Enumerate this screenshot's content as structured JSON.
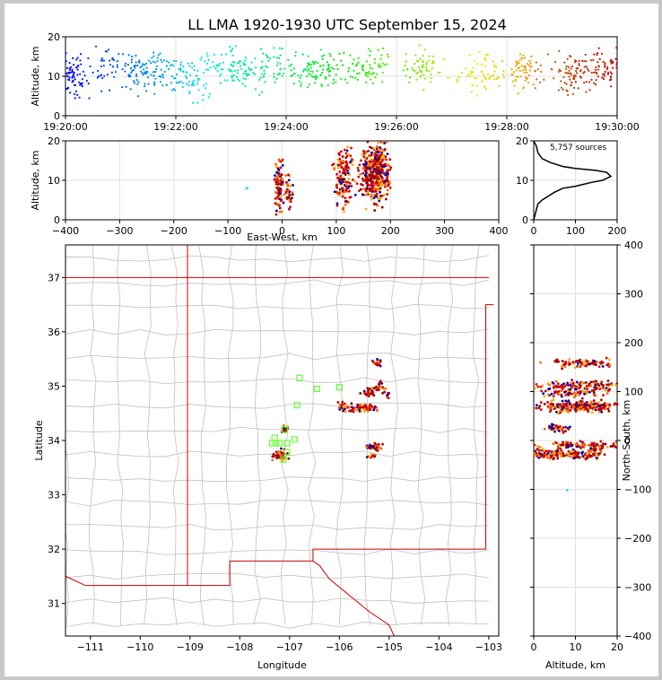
{
  "chart_data": [
    {
      "panel": "altitude-time",
      "type": "scatter",
      "title": "LL LMA 1920-1930 UTC September 15, 2024",
      "ylabel": "Altitude, km",
      "xlabel": "",
      "x_tick_labels": [
        "19:20:00",
        "19:22:00",
        "19:24:00",
        "19:26:00",
        "19:28:00",
        "19:30:00"
      ],
      "y_ticks": [
        0,
        10,
        20
      ],
      "xlim_minutes": [
        0,
        10
      ],
      "ylim": [
        0,
        20
      ],
      "color_scale": "time (blue → red)",
      "grid": true,
      "clusters": [
        {
          "t": 0.1,
          "alt": 10,
          "spread": 3.5,
          "n": 90
        },
        {
          "t": 0.8,
          "alt": 12,
          "spread": 3,
          "n": 40
        },
        {
          "t": 1.35,
          "alt": 11.5,
          "spread": 3,
          "n": 70
        },
        {
          "t": 1.8,
          "alt": 12,
          "spread": 3,
          "n": 40
        },
        {
          "t": 2.3,
          "alt": 9,
          "spread": 3.5,
          "n": 60
        },
        {
          "t": 2.9,
          "alt": 12.5,
          "spread": 3,
          "n": 50
        },
        {
          "t": 3.3,
          "alt": 11,
          "spread": 3,
          "n": 50
        },
        {
          "t": 3.8,
          "alt": 12,
          "spread": 3,
          "n": 40
        },
        {
          "t": 4.4,
          "alt": 11,
          "spread": 3,
          "n": 50
        },
        {
          "t": 4.8,
          "alt": 12,
          "spread": 3,
          "n": 40
        },
        {
          "t": 5.5,
          "alt": 12,
          "spread": 3,
          "n": 60
        },
        {
          "t": 6.5,
          "alt": 12,
          "spread": 3,
          "n": 60
        },
        {
          "t": 7.5,
          "alt": 11,
          "spread": 3,
          "n": 60
        },
        {
          "t": 8.3,
          "alt": 11.5,
          "spread": 3,
          "n": 70
        },
        {
          "t": 9.2,
          "alt": 10.5,
          "spread": 3.5,
          "n": 80
        },
        {
          "t": 9.8,
          "alt": 12,
          "spread": 3,
          "n": 60
        }
      ]
    },
    {
      "panel": "altitude-eastwest",
      "type": "scatter",
      "xlabel": "East-West, km",
      "ylabel": "Altitude, km",
      "xlim": [
        -400,
        400
      ],
      "ylim": [
        0,
        20
      ],
      "x_ticks": [
        -400,
        -300,
        -200,
        -100,
        0,
        100,
        200,
        300,
        400
      ],
      "y_ticks": [
        0,
        10,
        20
      ],
      "grid": true,
      "clusters": [
        {
          "x": -5,
          "alt": 8,
          "spread_x": 4,
          "spread_alt": 3,
          "n": 80
        },
        {
          "x": 12,
          "alt": 7,
          "spread_x": 4,
          "spread_alt": 2,
          "n": 40
        },
        {
          "x": 115,
          "alt": 11,
          "spread_x": 8,
          "spread_alt": 4,
          "n": 140
        },
        {
          "x": 160,
          "alt": 11,
          "spread_x": 8,
          "spread_alt": 4,
          "n": 160
        },
        {
          "x": 178,
          "alt": 13,
          "spread_x": 8,
          "spread_alt": 4,
          "n": 220
        },
        {
          "x": 195,
          "alt": 12,
          "spread_x": 3,
          "spread_alt": 3,
          "n": 30
        }
      ]
    },
    {
      "panel": "altitude-histogram",
      "type": "line",
      "annotation": "5,757 sources",
      "xlim": [
        0,
        200
      ],
      "ylim": [
        0,
        20
      ],
      "x_ticks": [
        0,
        100,
        200
      ],
      "y_ticks": [
        0,
        10,
        20
      ],
      "grid": true,
      "x": [
        0,
        5,
        10,
        20,
        35,
        50,
        70,
        100,
        120,
        140,
        165,
        185,
        175,
        150,
        100,
        70,
        40,
        20,
        10,
        8,
        5,
        2,
        0
      ],
      "y": [
        0,
        2,
        4,
        5,
        6,
        7,
        8,
        8.5,
        9,
        9.5,
        10,
        11,
        12,
        12.5,
        13,
        13.5,
        14.5,
        15.5,
        17,
        18,
        19,
        19.5,
        20
      ]
    },
    {
      "panel": "plan-view",
      "type": "scatter",
      "xlabel": "Longitude",
      "ylabel": "Latitude",
      "xlim": [
        -111.5,
        -102.8
      ],
      "ylim": [
        30.4,
        37.6
      ],
      "x_tick_labels": [
        "−111",
        "−110",
        "−109",
        "−108",
        "−107",
        "−106",
        "−105",
        "−104",
        "−103"
      ],
      "x_ticks": [
        -111,
        -110,
        -109,
        -108,
        -107,
        -106,
        -105,
        -104,
        -103
      ],
      "y_ticks": [
        31,
        32,
        33,
        34,
        35,
        36,
        37
      ],
      "station_color": "#66ff33",
      "boundary_color": "#cc0000",
      "county_color": "#c0c0c0",
      "stations": [
        [
          -107.1,
          34.2
        ],
        [
          -107.3,
          34.05
        ],
        [
          -107.35,
          33.95
        ],
        [
          -107.2,
          33.95
        ],
        [
          -107.05,
          33.95
        ],
        [
          -106.9,
          34.02
        ],
        [
          -107.05,
          33.78
        ],
        [
          -107.12,
          33.65
        ],
        [
          -106.85,
          34.65
        ],
        [
          -106.8,
          35.15
        ],
        [
          -106.45,
          34.95
        ],
        [
          -106.0,
          34.98
        ],
        [
          -107.28,
          33.95
        ]
      ],
      "clusters": [
        {
          "lon": -107.2,
          "lat": 33.72,
          "spread_lon": 0.08,
          "spread_lat": 0.05,
          "n": 40
        },
        {
          "lon": -107.1,
          "lat": 34.2,
          "spread_lon": 0.05,
          "spread_lat": 0.04,
          "n": 15
        },
        {
          "lon": -105.5,
          "lat": 34.6,
          "spread_lon": 0.12,
          "spread_lat": 0.04,
          "n": 60
        },
        {
          "lon": -105.4,
          "lat": 34.9,
          "spread_lon": 0.08,
          "spread_lat": 0.04,
          "n": 30
        },
        {
          "lon": -105.2,
          "lat": 35.0,
          "spread_lon": 0.06,
          "spread_lat": 0.04,
          "n": 20
        },
        {
          "lon": -105.25,
          "lat": 35.42,
          "spread_lon": 0.06,
          "spread_lat": 0.04,
          "n": 20
        },
        {
          "lon": -105.9,
          "lat": 34.62,
          "spread_lon": 0.07,
          "spread_lat": 0.04,
          "n": 25
        },
        {
          "lon": -105.3,
          "lat": 33.88,
          "spread_lon": 0.08,
          "spread_lat": 0.03,
          "n": 30
        },
        {
          "lon": -105.35,
          "lat": 33.72,
          "spread_lon": 0.05,
          "spread_lat": 0.02,
          "n": 15
        },
        {
          "lon": -105.05,
          "lat": 34.85,
          "spread_lon": 0.04,
          "spread_lat": 0.05,
          "n": 10
        }
      ]
    },
    {
      "panel": "northsouth-altitude",
      "type": "scatter",
      "xlabel": "Altitude, km",
      "ylabel": "North-South, km",
      "xlim": [
        0,
        20
      ],
      "ylim": [
        -400,
        400
      ],
      "x_ticks": [
        0,
        10,
        20
      ],
      "y_ticks": [
        -400,
        -300,
        -200,
        -100,
        0,
        100,
        200,
        300,
        400
      ],
      "grid": true,
      "clusters": [
        {
          "alt": 12,
          "ns": 158,
          "spread_alt": 4.5,
          "spread_ns": 4,
          "n": 80
        },
        {
          "alt": 11,
          "ns": 112,
          "spread_alt": 5,
          "spread_ns": 5,
          "n": 110
        },
        {
          "alt": 9,
          "ns": 97,
          "spread_alt": 4,
          "spread_ns": 4,
          "n": 60
        },
        {
          "alt": 11,
          "ns": 70,
          "spread_alt": 5,
          "spread_ns": 6,
          "n": 220
        },
        {
          "alt": 6,
          "ns": 25,
          "spread_alt": 1.5,
          "spread_ns": 4,
          "n": 40
        },
        {
          "alt": 12,
          "ns": -10,
          "spread_alt": 5,
          "spread_ns": 4,
          "n": 100
        },
        {
          "alt": 8,
          "ns": -28,
          "spread_alt": 5,
          "spread_ns": 5,
          "n": 160
        },
        {
          "alt": 8,
          "ns": -103,
          "spread_alt": 0.1,
          "spread_ns": 1,
          "n": 1
        }
      ]
    }
  ]
}
